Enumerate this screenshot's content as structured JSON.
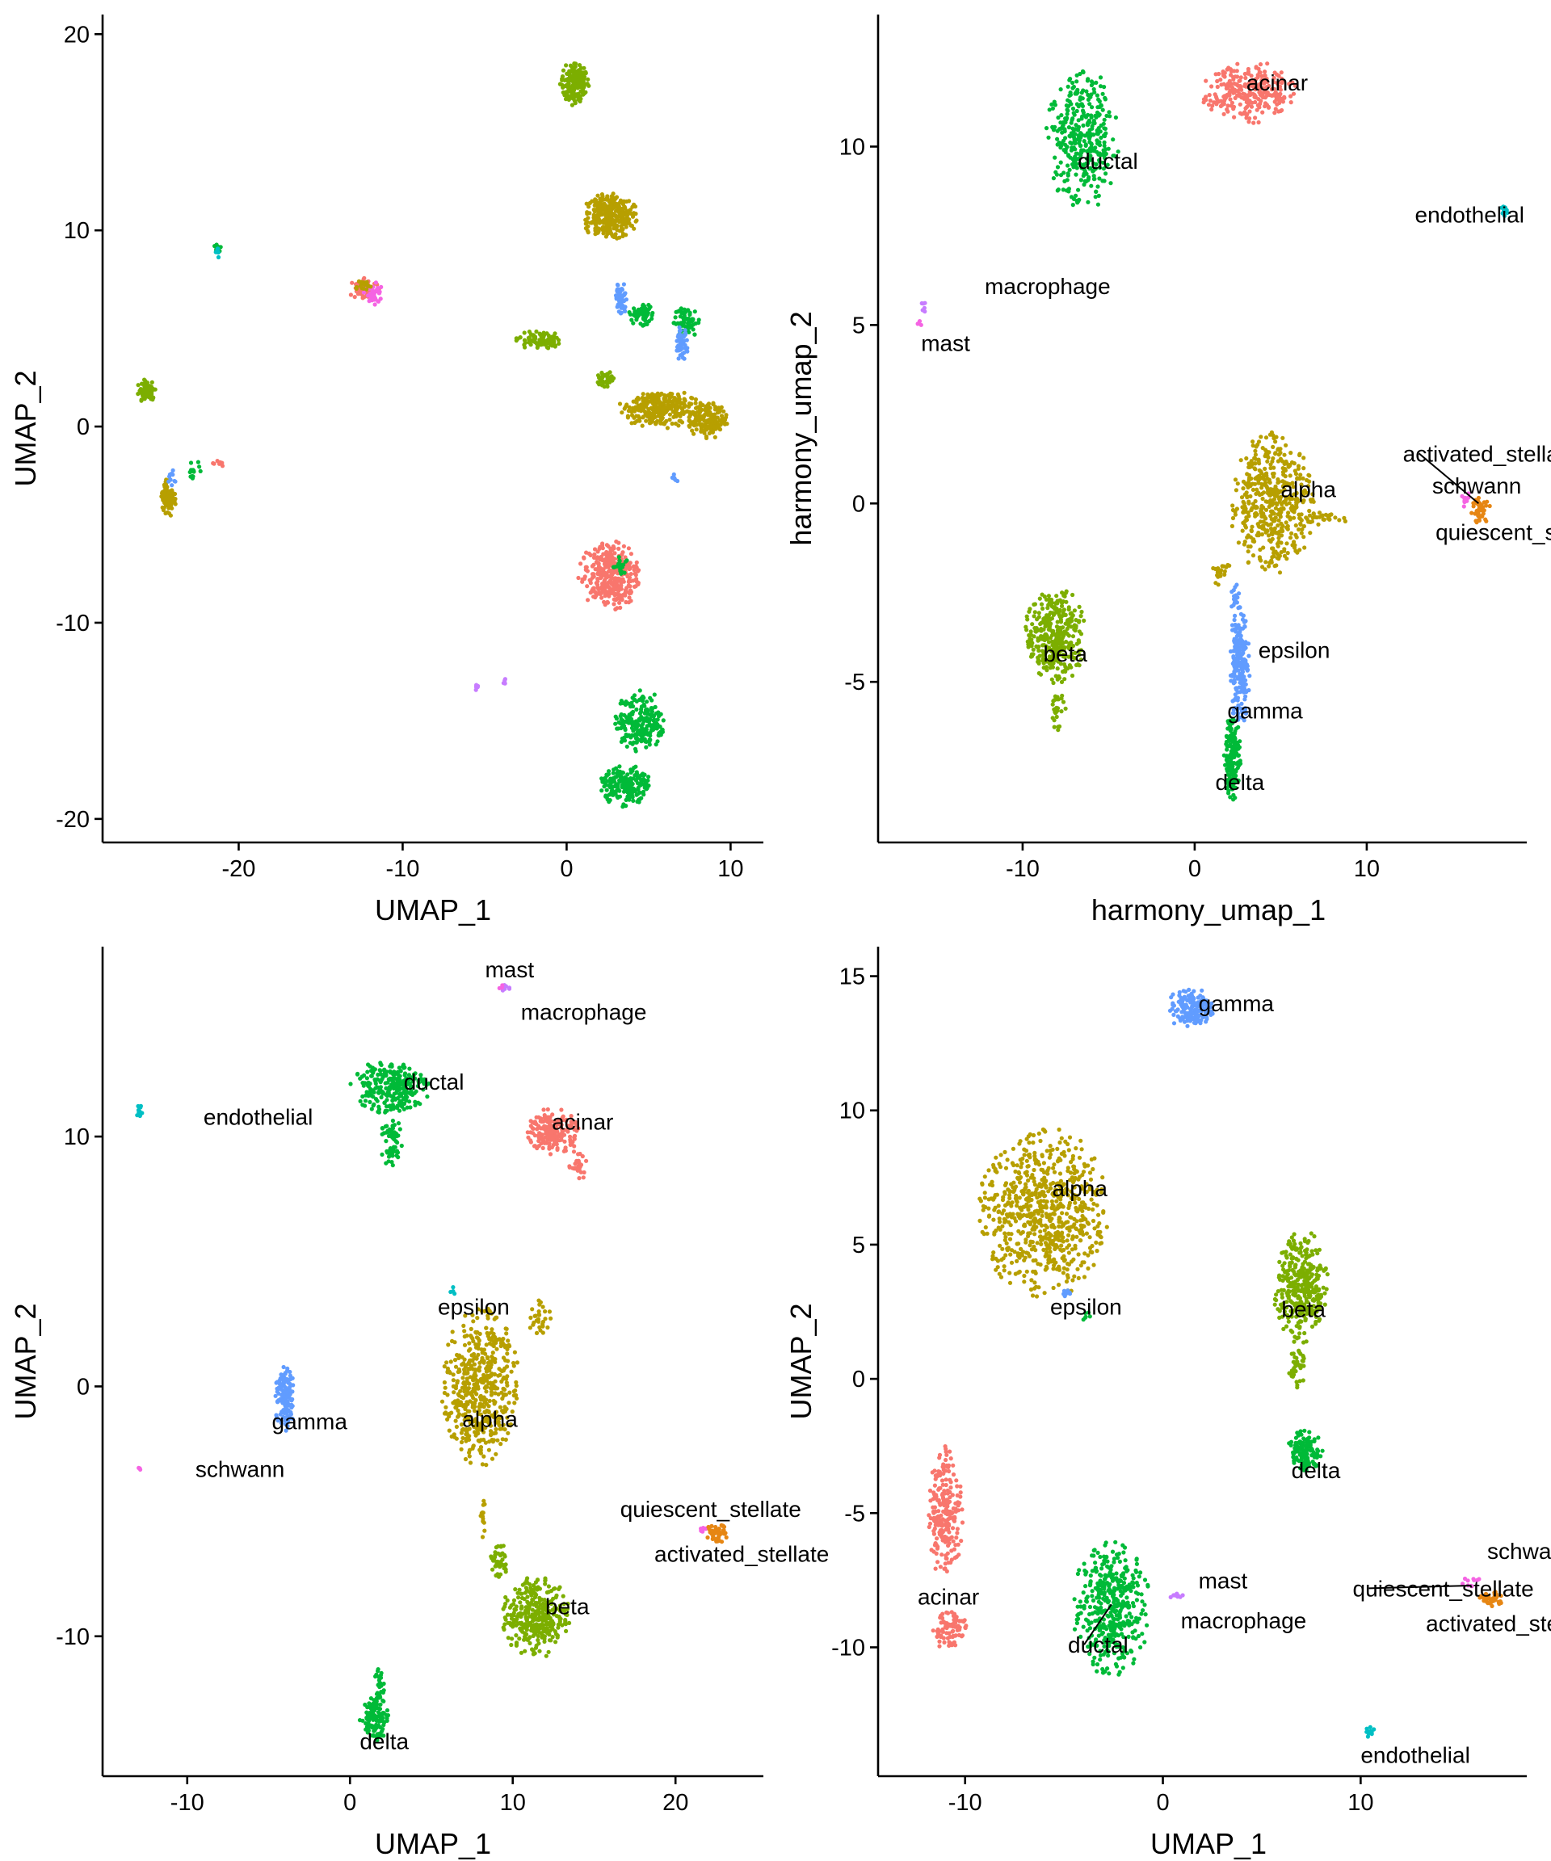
{
  "chart_data": [
    {
      "type": "scatter",
      "xlabel": "UMAP_1",
      "ylabel": "UMAP_2",
      "xlim": [
        -28.3,
        12.0
      ],
      "ylim": [
        -21.2,
        21.0
      ],
      "xticks": [
        -20,
        -10,
        0,
        10
      ],
      "yticks": [
        -20,
        -10,
        0,
        10,
        20
      ],
      "clusters": [
        {
          "color": "#7CAE00",
          "cx": 0.5,
          "cy": 17.5,
          "rx": 0.9,
          "ry": 1.2,
          "n": 180
        },
        {
          "color": "#B79F00",
          "cx": 2.6,
          "cy": 10.7,
          "rx": 1.8,
          "ry": 1.2,
          "n": 320
        },
        {
          "color": "#00BA38",
          "cx": -21.3,
          "cy": 9.0,
          "rx": 0.25,
          "ry": 0.35,
          "n": 12
        },
        {
          "color": "#00BFC4",
          "cx": -21.3,
          "cy": 8.9,
          "rx": 0.2,
          "ry": 0.3,
          "n": 8
        },
        {
          "color": "#F8766D",
          "cx": -12.3,
          "cy": 7.0,
          "rx": 1.0,
          "ry": 0.6,
          "n": 60
        },
        {
          "color": "#F564E3",
          "cx": -11.8,
          "cy": 6.8,
          "rx": 0.6,
          "ry": 0.6,
          "n": 40
        },
        {
          "color": "#B79F00",
          "cx": -12.5,
          "cy": 7.2,
          "rx": 0.6,
          "ry": 0.3,
          "n": 20
        },
        {
          "color": "#7CAE00",
          "cx": -1.7,
          "cy": 4.4,
          "rx": 1.4,
          "ry": 0.5,
          "n": 90
        },
        {
          "color": "#619CFF",
          "cx": 3.3,
          "cy": 6.5,
          "rx": 0.4,
          "ry": 0.9,
          "n": 60
        },
        {
          "color": "#00BA38",
          "cx": 4.6,
          "cy": 5.7,
          "rx": 0.8,
          "ry": 0.6,
          "n": 60
        },
        {
          "color": "#00BA38",
          "cx": 7.3,
          "cy": 5.3,
          "rx": 0.9,
          "ry": 0.8,
          "n": 70
        },
        {
          "color": "#619CFF",
          "cx": 7.0,
          "cy": 4.2,
          "rx": 0.4,
          "ry": 0.9,
          "n": 50
        },
        {
          "color": "#7CAE00",
          "cx": 2.3,
          "cy": 2.4,
          "rx": 0.6,
          "ry": 0.5,
          "n": 40
        },
        {
          "color": "#B79F00",
          "cx": 5.7,
          "cy": 0.9,
          "rx": 2.6,
          "ry": 1.0,
          "n": 280
        },
        {
          "color": "#B79F00",
          "cx": 8.6,
          "cy": 0.3,
          "rx": 1.2,
          "ry": 1.0,
          "n": 160
        },
        {
          "color": "#7CAE00",
          "cx": -25.6,
          "cy": 1.8,
          "rx": 0.6,
          "ry": 0.7,
          "n": 80
        },
        {
          "color": "#B79F00",
          "cx": -24.3,
          "cy": -3.6,
          "rx": 0.5,
          "ry": 1.0,
          "n": 80
        },
        {
          "color": "#00BA38",
          "cx": -22.8,
          "cy": -2.2,
          "rx": 0.6,
          "ry": 0.5,
          "n": 14
        },
        {
          "color": "#619CFF",
          "cx": -24.1,
          "cy": -2.6,
          "rx": 0.3,
          "ry": 0.5,
          "n": 10
        },
        {
          "color": "#F8766D",
          "cx": -21.3,
          "cy": -1.9,
          "rx": 0.4,
          "ry": 0.2,
          "n": 8
        },
        {
          "color": "#F8766D",
          "cx": 2.6,
          "cy": -7.6,
          "rx": 1.9,
          "ry": 1.8,
          "n": 340
        },
        {
          "color": "#00BA38",
          "cx": 3.3,
          "cy": -7.2,
          "rx": 0.5,
          "ry": 0.6,
          "n": 20
        },
        {
          "color": "#00BA38",
          "cx": 4.5,
          "cy": -15.0,
          "rx": 1.6,
          "ry": 1.6,
          "n": 220
        },
        {
          "color": "#00BA38",
          "cx": 3.6,
          "cy": -18.3,
          "rx": 1.6,
          "ry": 1.1,
          "n": 200
        },
        {
          "color": "#C77CFF",
          "cx": -5.5,
          "cy": -13.3,
          "rx": 0.2,
          "ry": 0.15,
          "n": 6
        },
        {
          "color": "#C77CFF",
          "cx": -3.8,
          "cy": -13.0,
          "rx": 0.2,
          "ry": 0.15,
          "n": 6
        },
        {
          "color": "#619CFF",
          "cx": 6.6,
          "cy": -2.7,
          "rx": 0.2,
          "ry": 0.3,
          "n": 6
        }
      ]
    },
    {
      "type": "scatter",
      "xlabel": "harmony_umap_1",
      "ylabel": "harmony_umap_2",
      "xlim": [
        -18.4,
        19.3
      ],
      "ylim": [
        -9.5,
        13.7
      ],
      "xticks": [
        -10,
        0,
        10
      ],
      "yticks": [
        -5,
        0,
        5,
        10
      ],
      "clusters": [
        {
          "color": "#00BA38",
          "cx": -6.5,
          "cy": 10.2,
          "rx": 2.2,
          "ry": 2.0,
          "n": 360
        },
        {
          "color": "#F8766D",
          "cx": 3.2,
          "cy": 11.5,
          "rx": 2.8,
          "ry": 0.9,
          "n": 280
        },
        {
          "color": "#00BFC4",
          "cx": 18.0,
          "cy": 8.2,
          "rx": 0.2,
          "ry": 0.25,
          "n": 12
        },
        {
          "color": "#C77CFF",
          "cx": -15.7,
          "cy": 5.5,
          "rx": 0.2,
          "ry": 0.25,
          "n": 6
        },
        {
          "color": "#F564E3",
          "cx": -16.0,
          "cy": 5.1,
          "rx": 0.15,
          "ry": 0.15,
          "n": 4
        },
        {
          "color": "#B79F00",
          "cx": 4.5,
          "cy": 0.0,
          "rx": 2.5,
          "ry": 2.0,
          "n": 480
        },
        {
          "color": "#B79F00",
          "cx": 7.5,
          "cy": -0.4,
          "rx": 1.5,
          "ry": 0.2,
          "n": 30
        },
        {
          "color": "#B79F00",
          "cx": 1.5,
          "cy": -1.9,
          "rx": 0.6,
          "ry": 0.4,
          "n": 20
        },
        {
          "color": "#E68613",
          "cx": 16.6,
          "cy": -0.2,
          "rx": 0.6,
          "ry": 0.4,
          "n": 40
        },
        {
          "color": "#F564E3",
          "cx": 15.8,
          "cy": 0.1,
          "rx": 0.4,
          "ry": 0.2,
          "n": 10
        },
        {
          "color": "#7CAE00",
          "cx": -8.1,
          "cy": -3.7,
          "rx": 1.8,
          "ry": 1.4,
          "n": 360
        },
        {
          "color": "#7CAE00",
          "cx": -8.0,
          "cy": -5.8,
          "rx": 0.5,
          "ry": 0.6,
          "n": 30
        },
        {
          "color": "#619CFF",
          "cx": 2.6,
          "cy": -4.6,
          "rx": 0.6,
          "ry": 1.7,
          "n": 220
        },
        {
          "color": "#619CFF",
          "cx": 2.4,
          "cy": -2.7,
          "rx": 0.3,
          "ry": 0.5,
          "n": 20
        },
        {
          "color": "#00BA38",
          "cx": 2.2,
          "cy": -7.1,
          "rx": 0.5,
          "ry": 1.2,
          "n": 150
        }
      ],
      "labels": [
        {
          "text": "acinar",
          "x": 3.0,
          "y": 11.8
        },
        {
          "text": "ductal",
          "x": -6.8,
          "y": 9.6
        },
        {
          "text": "endothelial",
          "x": 12.8,
          "y": 8.1
        },
        {
          "text": "macrophage",
          "x": -12.2,
          "y": 6.1
        },
        {
          "text": "mast",
          "x": -15.9,
          "y": 4.5
        },
        {
          "text": "activated_stellate",
          "x": 12.1,
          "y": 1.4,
          "lx": 16.5,
          "ly": 0.0
        },
        {
          "text": "schwann",
          "x": 13.8,
          "y": 0.5
        },
        {
          "text": "alpha",
          "x": 5.0,
          "y": 0.4
        },
        {
          "text": "quiescent_stellate",
          "x": 14.0,
          "y": -0.8
        },
        {
          "text": "epsilon",
          "x": 3.7,
          "y": -4.1
        },
        {
          "text": "beta",
          "x": -8.8,
          "y": -4.2
        },
        {
          "text": "gamma",
          "x": 1.9,
          "y": -5.8
        },
        {
          "text": "delta",
          "x": 1.2,
          "y": -7.8
        }
      ]
    },
    {
      "type": "scatter",
      "xlabel": "UMAP_1",
      "ylabel": "UMAP_2",
      "xlim": [
        -15.2,
        25.4
      ],
      "ylim": [
        -15.6,
        17.6
      ],
      "xticks": [
        -10,
        0,
        10,
        20
      ],
      "yticks": [
        -10,
        0,
        10
      ],
      "clusters": [
        {
          "color": "#C77CFF",
          "cx": 9.6,
          "cy": 15.9,
          "rx": 0.4,
          "ry": 0.2,
          "n": 6
        },
        {
          "color": "#F564E3",
          "cx": 9.3,
          "cy": 16.0,
          "rx": 0.15,
          "ry": 0.1,
          "n": 3
        },
        {
          "color": "#00BFC4",
          "cx": -13.0,
          "cy": 11.0,
          "rx": 0.3,
          "ry": 0.3,
          "n": 12
        },
        {
          "color": "#00BA38",
          "cx": 2.5,
          "cy": 12.0,
          "rx": 2.5,
          "ry": 1.1,
          "n": 260
        },
        {
          "color": "#00BA38",
          "cx": 2.5,
          "cy": 9.8,
          "rx": 0.7,
          "ry": 1.1,
          "n": 60
        },
        {
          "color": "#F8766D",
          "cx": 12.5,
          "cy": 10.2,
          "rx": 1.6,
          "ry": 1.0,
          "n": 200
        },
        {
          "color": "#F8766D",
          "cx": 14.0,
          "cy": 8.9,
          "rx": 0.6,
          "ry": 0.7,
          "n": 30
        },
        {
          "color": "#B79F00",
          "cx": 8.0,
          "cy": 0.0,
          "rx": 2.4,
          "ry": 3.2,
          "n": 520
        },
        {
          "color": "#B79F00",
          "cx": 11.7,
          "cy": 2.8,
          "rx": 0.9,
          "ry": 0.8,
          "n": 30
        },
        {
          "color": "#B79F00",
          "cx": 8.2,
          "cy": -5.2,
          "rx": 0.2,
          "ry": 0.9,
          "n": 14
        },
        {
          "color": "#00BFC4",
          "cx": 6.3,
          "cy": 3.8,
          "rx": 0.3,
          "ry": 0.3,
          "n": 4
        },
        {
          "color": "#619CFF",
          "cx": -4.0,
          "cy": -0.5,
          "rx": 0.6,
          "ry": 1.4,
          "n": 130
        },
        {
          "color": "#F564E3",
          "cx": -13.0,
          "cy": -3.3,
          "rx": 0.15,
          "ry": 0.1,
          "n": 3
        },
        {
          "color": "#F564E3",
          "cx": 21.7,
          "cy": -5.7,
          "rx": 0.4,
          "ry": 0.2,
          "n": 8
        },
        {
          "color": "#E68613",
          "cx": 22.6,
          "cy": -5.9,
          "rx": 0.7,
          "ry": 0.5,
          "n": 40
        },
        {
          "color": "#7CAE00",
          "cx": 11.4,
          "cy": -9.2,
          "rx": 2.1,
          "ry": 1.7,
          "n": 340
        },
        {
          "color": "#7CAE00",
          "cx": 9.1,
          "cy": -7.0,
          "rx": 0.6,
          "ry": 0.8,
          "n": 40
        },
        {
          "color": "#00BA38",
          "cx": 1.5,
          "cy": -13.3,
          "rx": 0.9,
          "ry": 0.9,
          "n": 110
        },
        {
          "color": "#00BA38",
          "cx": 1.8,
          "cy": -12.0,
          "rx": 0.3,
          "ry": 0.8,
          "n": 30
        }
      ],
      "labels": [
        {
          "text": "mast",
          "x": 8.3,
          "y": 16.7
        },
        {
          "text": "macrophage",
          "x": 10.5,
          "y": 15.0
        },
        {
          "text": "ductal",
          "x": 3.3,
          "y": 12.2
        },
        {
          "text": "endothelial",
          "x": -9.0,
          "y": 10.8
        },
        {
          "text": "acinar",
          "x": 12.4,
          "y": 10.6
        },
        {
          "text": "epsilon",
          "x": 5.4,
          "y": 3.2
        },
        {
          "text": "gamma",
          "x": -4.8,
          "y": -1.4
        },
        {
          "text": "alpha",
          "x": 6.9,
          "y": -1.3
        },
        {
          "text": "schwann",
          "x": -9.5,
          "y": -3.3
        },
        {
          "text": "quiescent_stellate",
          "x": 16.6,
          "y": -4.9
        },
        {
          "text": "activated_stellate",
          "x": 18.7,
          "y": -6.7
        },
        {
          "text": "beta",
          "x": 12.0,
          "y": -8.8
        },
        {
          "text": "delta",
          "x": 0.6,
          "y": -14.2
        }
      ]
    },
    {
      "type": "scatter",
      "xlabel": "UMAP_1",
      "ylabel": "UMAP_2",
      "xlim": [
        -14.4,
        18.4
      ],
      "ylim": [
        -14.8,
        16.1
      ],
      "xticks": [
        -10,
        0,
        10
      ],
      "yticks": [
        -10,
        -5,
        0,
        5,
        10,
        15
      ],
      "clusters": [
        {
          "color": "#619CFF",
          "cx": 1.4,
          "cy": 13.8,
          "rx": 1.2,
          "ry": 0.8,
          "n": 150
        },
        {
          "color": "#B79F00",
          "cx": -6.0,
          "cy": 6.2,
          "rx": 3.4,
          "ry": 3.2,
          "n": 720
        },
        {
          "color": "#619CFF",
          "cx": -5.0,
          "cy": 3.2,
          "rx": 0.5,
          "ry": 0.2,
          "n": 8
        },
        {
          "color": "#00BA38",
          "cx": -3.8,
          "cy": 2.3,
          "rx": 0.3,
          "ry": 0.2,
          "n": 6
        },
        {
          "color": "#7CAE00",
          "cx": 7.0,
          "cy": 3.4,
          "rx": 1.4,
          "ry": 2.2,
          "n": 340
        },
        {
          "color": "#7CAE00",
          "cx": 6.8,
          "cy": 0.4,
          "rx": 0.5,
          "ry": 0.8,
          "n": 40
        },
        {
          "color": "#00BA38",
          "cx": 7.2,
          "cy": -2.7,
          "rx": 0.9,
          "ry": 0.8,
          "n": 120
        },
        {
          "color": "#F8766D",
          "cx": -11.0,
          "cy": -5.0,
          "rx": 0.9,
          "ry": 2.5,
          "n": 220
        },
        {
          "color": "#F8766D",
          "cx": -10.8,
          "cy": -9.3,
          "rx": 0.9,
          "ry": 0.8,
          "n": 80
        },
        {
          "color": "#00BA38",
          "cx": -2.6,
          "cy": -8.5,
          "rx": 2.0,
          "ry": 2.6,
          "n": 420
        },
        {
          "color": "#C77CFF",
          "cx": 0.7,
          "cy": -8.1,
          "rx": 0.4,
          "ry": 0.15,
          "n": 10
        },
        {
          "color": "#00BFC4",
          "cx": 10.5,
          "cy": -13.1,
          "rx": 0.25,
          "ry": 0.3,
          "n": 12
        },
        {
          "color": "#F564E3",
          "cx": 15.6,
          "cy": -7.6,
          "rx": 0.5,
          "ry": 0.25,
          "n": 10
        },
        {
          "color": "#E68613",
          "cx": 16.6,
          "cy": -8.2,
          "rx": 0.6,
          "ry": 0.3,
          "n": 40
        }
      ],
      "labels": [
        {
          "text": "gamma",
          "x": 1.8,
          "y": 14.0
        },
        {
          "text": "alpha",
          "x": -5.6,
          "y": 7.1
        },
        {
          "text": "beta",
          "x": 6.0,
          "y": 2.6
        },
        {
          "text": "epsilon",
          "x": -5.7,
          "y": 2.7
        },
        {
          "text": "delta",
          "x": 6.5,
          "y": -3.4
        },
        {
          "text": "schwann",
          "x": 16.4,
          "y": -6.4
        },
        {
          "text": "mast",
          "x": 1.8,
          "y": -7.5
        },
        {
          "text": "quiescent_stellate",
          "x": 9.6,
          "y": -7.8,
          "lx": 15.6,
          "ly": -7.7
        },
        {
          "text": "acinar",
          "x": -12.4,
          "y": -8.1
        },
        {
          "text": "macrophage",
          "x": 0.9,
          "y": -9.0
        },
        {
          "text": "activated_stellate",
          "x": 13.3,
          "y": -9.1
        },
        {
          "text": "ductal",
          "x": -4.8,
          "y": -9.9,
          "lx": -2.6,
          "ly": -8.4
        },
        {
          "text": "endothelial",
          "x": 10.0,
          "y": -14.0
        }
      ]
    }
  ]
}
